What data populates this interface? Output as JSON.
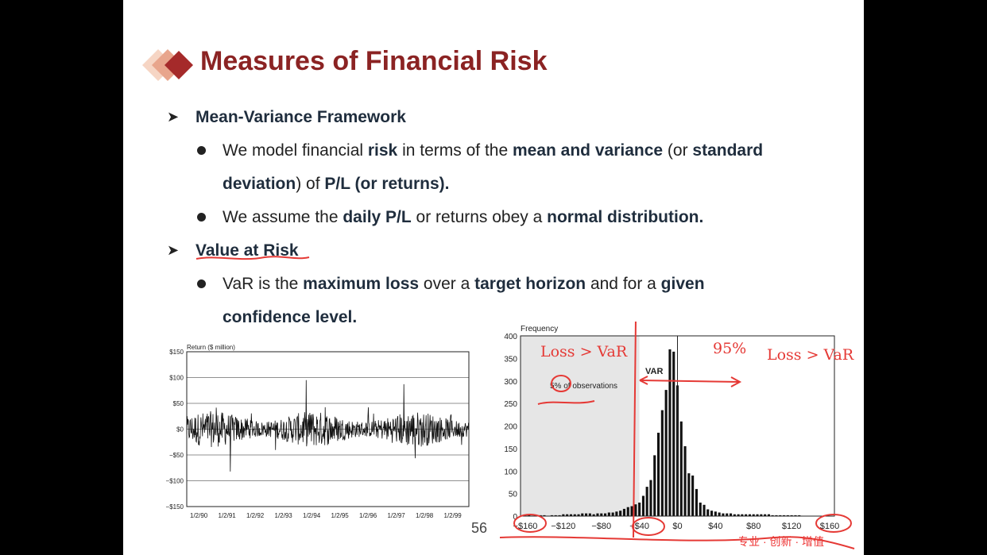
{
  "slide": {
    "title": "Measures of Financial Risk",
    "page_number": "56",
    "footer_cn": "专业 · 创新 · 增值"
  },
  "bullets": {
    "mv_heading": "Mean-Variance Framework",
    "mv1_a": "We model financial ",
    "mv1_b": "risk",
    "mv1_c": " in terms of the ",
    "mv1_d": "mean and variance",
    "mv1_e": " (or ",
    "mv1_f": "standard",
    "mv1_g": "deviation",
    "mv1_h": ") of ",
    "mv1_i": "P/L (or returns).",
    "mv2_a": "We assume the ",
    "mv2_b": "daily P/L",
    "mv2_c": " or returns obey a ",
    "mv2_d": "normal distribution.",
    "var_heading": "Value at Risk",
    "var1_a": "VaR is the ",
    "var1_b": "maximum loss",
    "var1_c": " over a ",
    "var1_d": "target horizon",
    "var1_e": " and for a ",
    "var1_f": "given",
    "var1_g": "confidence level."
  },
  "annotations": {
    "loss_left": "Loss > VaR",
    "pct": "95%",
    "loss_right": "Loss > VaR"
  },
  "chart_data": [
    {
      "type": "line",
      "ylabel": "Return ($ million)",
      "ylim": [
        -150,
        150
      ],
      "y_ticks": [
        "$150",
        "$100",
        "$50",
        "$0",
        "−$50",
        "−$100",
        "−$150"
      ],
      "x_ticks": [
        "1/2/90",
        "1/2/91",
        "1/2/92",
        "1/2/93",
        "1/2/94",
        "1/2/95",
        "1/2/96",
        "1/2/97",
        "1/2/98",
        "1/2/99"
      ],
      "grid": true
    },
    {
      "type": "bar",
      "ylabel": "Frequency",
      "ylim": [
        0,
        400
      ],
      "y_ticks": [
        "400",
        "350",
        "300",
        "250",
        "200",
        "150",
        "100",
        "50",
        "0"
      ],
      "x_ticks": [
        "−$160",
        "−$120",
        "−$80",
        "−$40",
        "$0",
        "$40",
        "$80",
        "$120",
        "$160"
      ],
      "x": [
        -160,
        -156,
        -152,
        -148,
        -144,
        -140,
        -136,
        -132,
        -128,
        -124,
        -120,
        -116,
        -112,
        -108,
        -104,
        -100,
        -96,
        -92,
        -88,
        -84,
        -80,
        -76,
        -72,
        -68,
        -64,
        -60,
        -56,
        -52,
        -48,
        -44,
        -40,
        -36,
        -32,
        -28,
        -24,
        -20,
        -16,
        -12,
        -8,
        -4,
        0,
        4,
        8,
        12,
        16,
        20,
        24,
        28,
        32,
        36,
        40,
        44,
        48,
        52,
        56,
        60,
        64,
        68,
        72,
        76,
        80,
        84,
        88,
        92,
        96,
        100,
        104,
        108,
        112,
        116,
        120,
        124,
        128,
        132,
        136,
        140,
        144,
        148,
        152,
        156,
        160
      ],
      "values": [
        0,
        2,
        0,
        0,
        2,
        2,
        0,
        2,
        2,
        2,
        4,
        4,
        4,
        4,
        4,
        6,
        6,
        6,
        4,
        6,
        6,
        6,
        8,
        8,
        10,
        12,
        16,
        20,
        22,
        26,
        30,
        45,
        65,
        80,
        135,
        185,
        235,
        280,
        370,
        365,
        290,
        210,
        155,
        95,
        90,
        60,
        30,
        25,
        15,
        12,
        10,
        8,
        6,
        6,
        6,
        4,
        4,
        4,
        4,
        4,
        4,
        4,
        4,
        4,
        4,
        2,
        2,
        2,
        2,
        2,
        2,
        2,
        2,
        0,
        0,
        0,
        0,
        0,
        0,
        0,
        0
      ],
      "annotations": [
        "VAR",
        "5% of observations"
      ],
      "grid": false
    }
  ]
}
